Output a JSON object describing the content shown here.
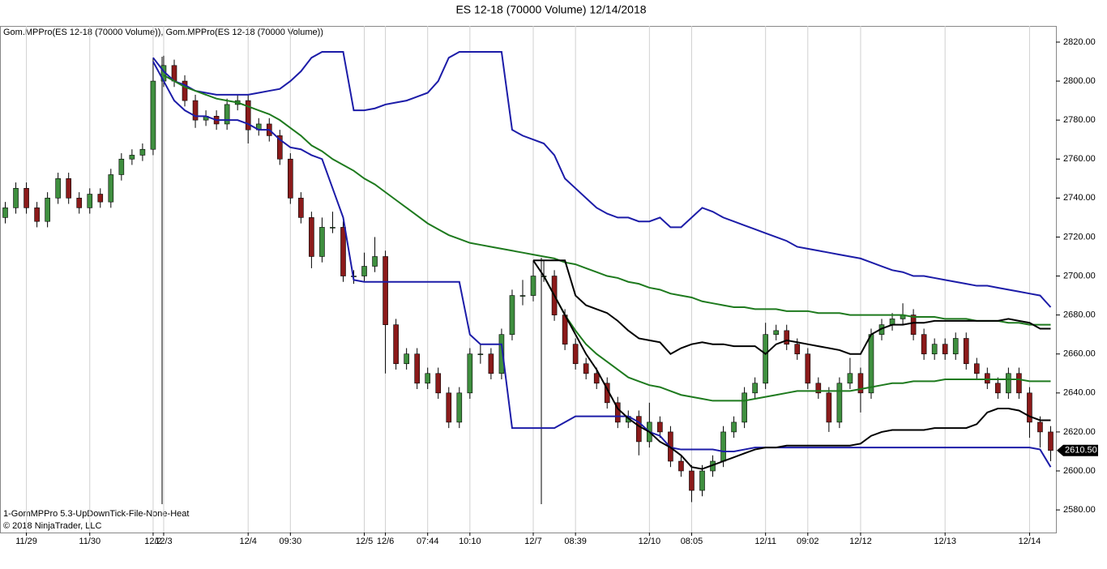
{
  "chart_data": {
    "type": "candlestick",
    "title": "ES 12-18 (70000 Volume)  12/14/2018",
    "indicator_label": "Gom.MPPro(ES 12-18 (70000 Volume)), Gom.MPPro(ES 12-18 (70000 Volume))",
    "footer_lines": [
      "1-GomMPPro 5.3-UpDownTick-File-None-Heat",
      "© 2018 NinjaTrader, LLC"
    ],
    "categories": [
      null,
      null,
      "11/29",
      null,
      null,
      null,
      null,
      null,
      "11/30",
      null,
      null,
      null,
      null,
      null,
      "12/2",
      "12/3",
      null,
      null,
      null,
      null,
      null,
      null,
      null,
      "12/4",
      null,
      null,
      null,
      "09:30",
      null,
      null,
      null,
      null,
      null,
      null,
      "12/5",
      null,
      "12/6",
      null,
      null,
      null,
      "07:44",
      null,
      null,
      null,
      "10:10",
      null,
      null,
      null,
      null,
      null,
      "12/7",
      null,
      null,
      null,
      "08:39",
      null,
      null,
      null,
      null,
      null,
      null,
      "12/10",
      null,
      null,
      null,
      "08:05",
      null,
      null,
      null,
      null,
      null,
      null,
      "12/11",
      null,
      null,
      null,
      "09:02",
      null,
      null,
      null,
      null,
      "12/12",
      null,
      null,
      null,
      null,
      null,
      null,
      null,
      "12/13",
      null,
      null,
      null,
      null,
      null,
      null,
      null,
      "12/14",
      null,
      null
    ],
    "open": [
      2730,
      2735,
      2745,
      2735,
      2728,
      2740,
      2750,
      2740,
      2735,
      2742,
      2738,
      2752,
      2760,
      2762,
      2765,
      2800,
      2808,
      2800,
      2790,
      2780,
      2782,
      2778,
      2788,
      2790,
      2775,
      2778,
      2772,
      2760,
      2740,
      2730,
      2710,
      2725,
      2725,
      2700,
      2700,
      2705,
      2710,
      2675,
      2655,
      2660,
      2645,
      2650,
      2640,
      2625,
      2640,
      2660,
      2660,
      2650,
      2670,
      2690,
      2690,
      2700,
      2700,
      2680,
      2665,
      2655,
      2650,
      2645,
      2635,
      2625,
      2628,
      2615,
      2625,
      2620,
      2605,
      2600,
      2590,
      2600,
      2605,
      2620,
      2625,
      2640,
      2645,
      2670,
      2672,
      2665,
      2660,
      2645,
      2640,
      2625,
      2645,
      2650,
      2640,
      2670,
      2675,
      2678,
      2680,
      2670,
      2660,
      2665,
      2660,
      2668,
      2655,
      2650,
      2645,
      2640,
      2650,
      2640,
      2625,
      2620
    ],
    "high": [
      2738,
      2748,
      2748,
      2738,
      2743,
      2753,
      2753,
      2743,
      2745,
      2745,
      2755,
      2763,
      2765,
      2768,
      2812,
      2813,
      2811,
      2803,
      2793,
      2785,
      2785,
      2791,
      2793,
      2793,
      2781,
      2781,
      2775,
      2763,
      2743,
      2733,
      2730,
      2733,
      2728,
      2703,
      2712,
      2720,
      2713,
      2678,
      2663,
      2663,
      2653,
      2653,
      2643,
      2643,
      2663,
      2665,
      2663,
      2673,
      2693,
      2698,
      2708,
      2708,
      2703,
      2683,
      2668,
      2658,
      2653,
      2648,
      2638,
      2631,
      2631,
      2635,
      2628,
      2623,
      2608,
      2603,
      2603,
      2608,
      2623,
      2628,
      2643,
      2648,
      2676,
      2675,
      2675,
      2668,
      2663,
      2648,
      2643,
      2648,
      2658,
      2653,
      2673,
      2678,
      2681,
      2686,
      2683,
      2673,
      2668,
      2668,
      2671,
      2671,
      2658,
      2653,
      2648,
      2653,
      2653,
      2643,
      2628,
      2623
    ],
    "low": [
      2727,
      2732,
      2732,
      2725,
      2725,
      2737,
      2737,
      2732,
      2732,
      2735,
      2735,
      2749,
      2757,
      2759,
      2762,
      2797,
      2797,
      2787,
      2776,
      2777,
      2775,
      2775,
      2785,
      2768,
      2772,
      2769,
      2757,
      2737,
      2727,
      2704,
      2707,
      2722,
      2697,
      2696,
      2697,
      2702,
      2650,
      2652,
      2652,
      2642,
      2642,
      2637,
      2622,
      2622,
      2637,
      2655,
      2647,
      2647,
      2667,
      2685,
      2687,
      2697,
      2677,
      2662,
      2652,
      2647,
      2642,
      2632,
      2622,
      2622,
      2608,
      2612,
      2617,
      2602,
      2597,
      2584,
      2587,
      2597,
      2602,
      2617,
      2622,
      2637,
      2642,
      2667,
      2662,
      2657,
      2642,
      2637,
      2620,
      2622,
      2642,
      2630,
      2637,
      2667,
      2672,
      2675,
      2667,
      2657,
      2657,
      2657,
      2657,
      2652,
      2647,
      2642,
      2637,
      2637,
      2637,
      2617,
      2612,
      2605
    ],
    "close": [
      2735,
      2745,
      2735,
      2728,
      2740,
      2750,
      2740,
      2735,
      2742,
      2738,
      2752,
      2760,
      2762,
      2765,
      2800,
      2808,
      2800,
      2790,
      2780,
      2782,
      2778,
      2788,
      2790,
      2775,
      2778,
      2772,
      2760,
      2740,
      2730,
      2710,
      2725,
      2725,
      2700,
      2700,
      2705,
      2710,
      2675,
      2655,
      2660,
      2645,
      2650,
      2640,
      2625,
      2640,
      2660,
      2660,
      2650,
      2670,
      2690,
      2690,
      2700,
      2700,
      2680,
      2665,
      2655,
      2650,
      2645,
      2635,
      2625,
      2628,
      2615,
      2625,
      2620,
      2605,
      2600,
      2590,
      2600,
      2605,
      2620,
      2625,
      2640,
      2645,
      2670,
      2672,
      2665,
      2660,
      2645,
      2640,
      2625,
      2645,
      2650,
      2640,
      2670,
      2675,
      2678,
      2680,
      2670,
      2660,
      2665,
      2660,
      2668,
      2655,
      2650,
      2645,
      2640,
      2650,
      2640,
      2625,
      2620,
      2610.5
    ],
    "up_color": "#3f8f3f",
    "down_color": "#8b1a1a",
    "series": [
      {
        "color": "#1c1ca8",
        "values": [
          null,
          null,
          null,
          null,
          null,
          null,
          null,
          null,
          null,
          null,
          null,
          null,
          null,
          null,
          2812,
          2805,
          2800,
          2798,
          2795,
          2794,
          2793,
          2793,
          2793,
          2793,
          2794,
          2795,
          2796,
          2800,
          2805,
          2812,
          2815,
          2815,
          2815,
          2785,
          2785,
          2786,
          2788,
          2789,
          2790,
          2792,
          2794,
          2800,
          2812,
          2815,
          2815,
          2815,
          2815,
          2815,
          2775,
          2772,
          2770,
          2768,
          2762,
          2750,
          2745,
          2740,
          2735,
          2732,
          2730,
          2730,
          2728,
          2728,
          2730,
          2725,
          2725,
          2730,
          2735,
          2733,
          2730,
          2728,
          2726,
          2724,
          2722,
          2720,
          2718,
          2715,
          2714,
          2713,
          2712,
          2711,
          2710,
          2709,
          2707,
          2705,
          2703,
          2702,
          2700,
          2700,
          2699,
          2698,
          2697,
          2696,
          2695,
          2695,
          2694,
          2693,
          2692,
          2691,
          2690,
          2684
        ]
      },
      {
        "color": "#1c1ca8",
        "values": [
          null,
          null,
          null,
          null,
          null,
          null,
          null,
          null,
          null,
          null,
          null,
          null,
          null,
          null,
          2810,
          2800,
          2790,
          2785,
          2782,
          2782,
          2780,
          2780,
          2780,
          2778,
          2775,
          2775,
          2770,
          2766,
          2765,
          2762,
          2760,
          2745,
          2730,
          2698,
          2697,
          2697,
          2697,
          2697,
          2697,
          2697,
          2697,
          2697,
          2697,
          2697,
          2670,
          2665,
          2665,
          2665,
          2622,
          2622,
          2622,
          2622,
          2622,
          2625,
          2628,
          2628,
          2628,
          2628,
          2628,
          2628,
          2625,
          2620,
          2618,
          2612,
          2611,
          2611,
          2611,
          2611,
          2610,
          2610,
          2611,
          2612,
          2612,
          2612,
          2612,
          2612,
          2612,
          2612,
          2612,
          2612,
          2612,
          2612,
          2612,
          2612,
          2612,
          2612,
          2612,
          2612,
          2612,
          2612,
          2612,
          2612,
          2612,
          2612,
          2612,
          2612,
          2612,
          2612,
          2611,
          2602
        ]
      },
      {
        "color": "#1e7a1e",
        "values": [
          null,
          null,
          null,
          null,
          null,
          null,
          null,
          null,
          null,
          null,
          null,
          null,
          null,
          null,
          null,
          2803,
          2800,
          2797,
          2795,
          2793,
          2791,
          2790,
          2789,
          2787,
          2785,
          2783,
          2780,
          2776,
          2772,
          2767,
          2764,
          2760,
          2757,
          2754,
          2750,
          2747,
          2743,
          2739,
          2735,
          2731,
          2727,
          2724,
          2721,
          2719,
          2717,
          2716,
          2715,
          2714,
          2713,
          2712,
          2711,
          2710,
          2709,
          2707,
          2706,
          2704,
          2702,
          2700,
          2699,
          2697,
          2696,
          2694,
          2693,
          2691,
          2690,
          2689,
          2687,
          2686,
          2685,
          2684,
          2684,
          2683,
          2683,
          2683,
          2682,
          2682,
          2682,
          2681,
          2681,
          2681,
          2680,
          2680,
          2680,
          2680,
          2680,
          2680,
          2679,
          2679,
          2679,
          2678,
          2678,
          2678,
          2677,
          2677,
          2677,
          2676,
          2676,
          2675,
          2675,
          2675
        ]
      },
      {
        "color": "#1e7a1e",
        "values": [
          null,
          null,
          null,
          null,
          null,
          null,
          null,
          null,
          null,
          null,
          null,
          null,
          null,
          null,
          null,
          null,
          null,
          null,
          null,
          null,
          null,
          null,
          null,
          null,
          null,
          null,
          null,
          null,
          null,
          null,
          null,
          null,
          null,
          null,
          null,
          null,
          null,
          null,
          null,
          null,
          null,
          null,
          null,
          null,
          null,
          null,
          null,
          null,
          null,
          null,
          null,
          2700,
          2690,
          2680,
          2672,
          2665,
          2660,
          2656,
          2652,
          2648,
          2646,
          2644,
          2643,
          2641,
          2639,
          2638,
          2637,
          2636,
          2636,
          2636,
          2636,
          2637,
          2638,
          2639,
          2640,
          2641,
          2641,
          2641,
          2641,
          2641,
          2641,
          2642,
          2643,
          2644,
          2645,
          2645,
          2646,
          2646,
          2646,
          2647,
          2647,
          2647,
          2647,
          2647,
          2647,
          2647,
          2647,
          2646,
          2646,
          2646
        ]
      },
      {
        "color": "#000000",
        "values": [
          null,
          null,
          null,
          null,
          null,
          null,
          null,
          null,
          null,
          null,
          null,
          null,
          null,
          null,
          null,
          null,
          null,
          null,
          null,
          null,
          null,
          null,
          null,
          null,
          null,
          null,
          null,
          null,
          null,
          null,
          null,
          null,
          null,
          null,
          null,
          null,
          null,
          null,
          null,
          null,
          null,
          null,
          null,
          null,
          null,
          null,
          null,
          null,
          null,
          null,
          2708,
          2708,
          2708,
          2708,
          2690,
          2685,
          2683,
          2681,
          2677,
          2672,
          2668,
          2667,
          2666,
          2660,
          2663,
          2665,
          2666,
          2665,
          2665,
          2664,
          2664,
          2664,
          2660,
          2665,
          2667,
          2666,
          2665,
          2664,
          2663,
          2662,
          2660,
          2660,
          2670,
          2673,
          2675,
          2675,
          2676,
          2676,
          2677,
          2677,
          2677,
          2677,
          2677,
          2677,
          2677,
          2678,
          2677,
          2676,
          2673,
          2673
        ]
      },
      {
        "color": "#000000",
        "values": [
          null,
          null,
          null,
          null,
          null,
          null,
          null,
          null,
          null,
          null,
          null,
          null,
          null,
          null,
          null,
          null,
          null,
          null,
          null,
          null,
          null,
          null,
          null,
          null,
          null,
          null,
          null,
          null,
          null,
          null,
          null,
          null,
          null,
          null,
          null,
          null,
          null,
          null,
          null,
          null,
          null,
          null,
          null,
          null,
          null,
          null,
          null,
          null,
          null,
          null,
          2708,
          2700,
          2690,
          2680,
          2670,
          2660,
          2652,
          2642,
          2632,
          2627,
          2623,
          2620,
          2615,
          2612,
          2608,
          2602,
          2601,
          2603,
          2605,
          2607,
          2609,
          2611,
          2612,
          2612,
          2613,
          2613,
          2613,
          2613,
          2613,
          2613,
          2613,
          2614,
          2618,
          2620,
          2621,
          2621,
          2621,
          2621,
          2622,
          2622,
          2622,
          2622,
          2624,
          2630,
          2632,
          2632,
          2631,
          2628,
          2626,
          2626
        ]
      }
    ],
    "ylim": [
      2568.4,
      2828.3
    ],
    "yticks": [
      {
        "value": 2580,
        "label": "2580.00"
      },
      {
        "value": 2600,
        "label": "2600.00"
      },
      {
        "value": 2620,
        "label": "2620.00"
      },
      {
        "value": 2640,
        "label": "2640.00"
      },
      {
        "value": 2660,
        "label": "2660.00"
      },
      {
        "value": 2680,
        "label": "2680.00"
      },
      {
        "value": 2700,
        "label": "2700.00"
      },
      {
        "value": 2720,
        "label": "2720.00"
      },
      {
        "value": 2740,
        "label": "2740.00"
      },
      {
        "value": 2760,
        "label": "2760.00"
      },
      {
        "value": 2780,
        "label": "2780.00"
      },
      {
        "value": 2800,
        "label": "2800.00"
      },
      {
        "value": 2820,
        "label": "2820.00"
      }
    ],
    "last_price": {
      "value": 2610.5,
      "label": "2610.50"
    },
    "grid": true
  }
}
